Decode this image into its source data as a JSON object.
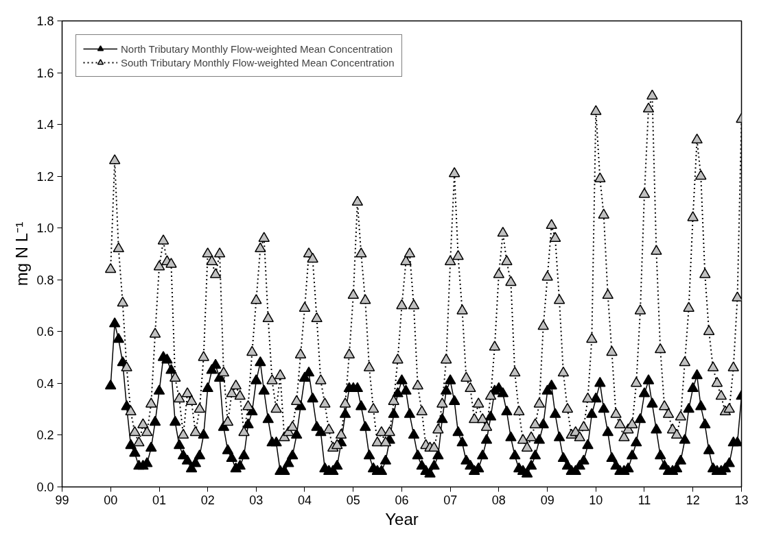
{
  "chart_data": {
    "type": "line",
    "xlabel": "Year",
    "ylabel": "mg N L⁻¹",
    "xlim": [
      "1999-01",
      "2013-01"
    ],
    "xticks": [
      {
        "value": "1999-01",
        "label": "99"
      },
      {
        "value": "2000-01",
        "label": "00"
      },
      {
        "value": "2001-01",
        "label": "01"
      },
      {
        "value": "2002-01",
        "label": "02"
      },
      {
        "value": "2003-01",
        "label": "03"
      },
      {
        "value": "2004-01",
        "label": "04"
      },
      {
        "value": "2005-01",
        "label": "05"
      },
      {
        "value": "2006-01",
        "label": "06"
      },
      {
        "value": "2007-01",
        "label": "07"
      },
      {
        "value": "2008-01",
        "label": "08"
      },
      {
        "value": "2009-01",
        "label": "09"
      },
      {
        "value": "2010-01",
        "label": "10"
      },
      {
        "value": "2011-01",
        "label": "11"
      },
      {
        "value": "2012-01",
        "label": "12"
      },
      {
        "value": "2013-01",
        "label": "13"
      }
    ],
    "ylim": [
      0,
      1.8
    ],
    "yticks": [
      {
        "value": 0,
        "label": "0.0"
      },
      0.2,
      0.4,
      0.6,
      0.8,
      {
        "value": 1,
        "label": "1.0"
      },
      1.2,
      1.4,
      1.6,
      1.8
    ],
    "grid": false,
    "legend": "top left",
    "marker": "triangle",
    "x": [
      "2000-01",
      "2000-02",
      "2000-03",
      "2000-04",
      "2000-05",
      "2000-06",
      "2000-07",
      "2000-08",
      "2000-09",
      "2000-10",
      "2000-11",
      "2000-12",
      "2001-01",
      "2001-02",
      "2001-03",
      "2001-04",
      "2001-05",
      "2001-06",
      "2001-07",
      "2001-08",
      "2001-09",
      "2001-10",
      "2001-11",
      "2001-12",
      "2002-01",
      "2002-02",
      "2002-03",
      "2002-04",
      "2002-05",
      "2002-06",
      "2002-07",
      "2002-08",
      "2002-09",
      "2002-10",
      "2002-11",
      "2002-12",
      "2003-01",
      "2003-02",
      "2003-03",
      "2003-04",
      "2003-05",
      "2003-06",
      "2003-07",
      "2003-08",
      "2003-09",
      "2003-10",
      "2003-11",
      "2003-12",
      "2004-01",
      "2004-02",
      "2004-03",
      "2004-04",
      "2004-05",
      "2004-06",
      "2004-07",
      "2004-08",
      "2004-09",
      "2004-10",
      "2004-11",
      "2004-12",
      "2005-01",
      "2005-02",
      "2005-03",
      "2005-04",
      "2005-05",
      "2005-06",
      "2005-07",
      "2005-08",
      "2005-09",
      "2005-10",
      "2005-11",
      "2005-12",
      "2006-01",
      "2006-02",
      "2006-03",
      "2006-04",
      "2006-05",
      "2006-06",
      "2006-07",
      "2006-08",
      "2006-09",
      "2006-10",
      "2006-11",
      "2006-12",
      "2007-01",
      "2007-02",
      "2007-03",
      "2007-04",
      "2007-05",
      "2007-06",
      "2007-07",
      "2007-08",
      "2007-09",
      "2007-10",
      "2007-11",
      "2007-12",
      "2008-01",
      "2008-02",
      "2008-03",
      "2008-04",
      "2008-05",
      "2008-06",
      "2008-07",
      "2008-08",
      "2008-09",
      "2008-10",
      "2008-11",
      "2008-12",
      "2009-01",
      "2009-02",
      "2009-03",
      "2009-04",
      "2009-05",
      "2009-06",
      "2009-07",
      "2009-08",
      "2009-09",
      "2009-10",
      "2009-11",
      "2009-12",
      "2010-01",
      "2010-02",
      "2010-03",
      "2010-04",
      "2010-05",
      "2010-06",
      "2010-07",
      "2010-08",
      "2010-09",
      "2010-10",
      "2010-11",
      "2010-12",
      "2011-01",
      "2011-02",
      "2011-03",
      "2011-04",
      "2011-05",
      "2011-06",
      "2011-07",
      "2011-08",
      "2011-09",
      "2011-10",
      "2011-11",
      "2011-12",
      "2012-01",
      "2012-02",
      "2012-03",
      "2012-04",
      "2012-05",
      "2012-06",
      "2012-07",
      "2012-08",
      "2012-09",
      "2012-10",
      "2012-11",
      "2012-12",
      "2013-01"
    ],
    "series": [
      {
        "name": "North Tributary Monthly Flow-weighted Mean Concentration",
        "color": "#000000",
        "line_style": "solid",
        "values": [
          0.39,
          0.63,
          0.57,
          0.48,
          0.31,
          0.16,
          0.13,
          0.08,
          0.08,
          0.09,
          0.15,
          0.25,
          0.37,
          0.5,
          0.49,
          0.45,
          0.25,
          0.16,
          0.12,
          0.1,
          0.07,
          0.09,
          0.12,
          0.2,
          0.38,
          0.45,
          0.47,
          0.42,
          0.23,
          0.14,
          0.11,
          0.07,
          0.08,
          0.12,
          0.24,
          0.29,
          0.41,
          0.48,
          0.37,
          0.26,
          0.17,
          0.17,
          0.06,
          0.06,
          0.09,
          0.12,
          0.2,
          0.31,
          0.42,
          0.44,
          0.34,
          0.23,
          0.21,
          0.07,
          0.06,
          0.06,
          0.08,
          0.17,
          0.28,
          0.38,
          0.38,
          0.38,
          0.31,
          0.23,
          0.12,
          0.07,
          0.06,
          0.06,
          0.1,
          0.18,
          0.28,
          0.36,
          0.41,
          0.37,
          0.28,
          0.2,
          0.12,
          0.08,
          0.06,
          0.05,
          0.08,
          0.12,
          0.26,
          0.37,
          0.41,
          0.33,
          0.21,
          0.17,
          0.1,
          0.08,
          0.06,
          0.07,
          0.12,
          0.18,
          0.27,
          0.37,
          0.38,
          0.36,
          0.29,
          0.19,
          0.12,
          0.07,
          0.06,
          0.05,
          0.08,
          0.12,
          0.18,
          0.24,
          0.37,
          0.39,
          0.28,
          0.19,
          0.11,
          0.08,
          0.06,
          0.06,
          0.08,
          0.1,
          0.16,
          0.28,
          0.34,
          0.4,
          0.3,
          0.21,
          0.11,
          0.08,
          0.06,
          0.06,
          0.07,
          0.12,
          0.17,
          0.26,
          0.36,
          0.41,
          0.32,
          0.22,
          0.12,
          0.08,
          0.06,
          0.06,
          0.07,
          0.1,
          0.18,
          0.3,
          0.38,
          0.43,
          0.31,
          0.24,
          0.14,
          0.07,
          0.06,
          0.06,
          0.07,
          0.09,
          0.17,
          0.17,
          0.35
        ]
      },
      {
        "name": "South Tributary Monthly Flow-weighted Mean Concentration",
        "color": "#c0c0c0",
        "line_style": "dotted",
        "values": [
          0.84,
          1.26,
          0.92,
          0.71,
          0.46,
          0.29,
          0.21,
          0.17,
          0.24,
          0.21,
          0.32,
          0.59,
          0.85,
          0.95,
          0.87,
          0.86,
          0.42,
          0.34,
          0.2,
          0.36,
          0.33,
          0.21,
          0.3,
          0.5,
          0.9,
          0.87,
          0.82,
          0.9,
          0.44,
          0.25,
          0.36,
          0.39,
          0.35,
          0.21,
          0.31,
          0.52,
          0.72,
          0.92,
          0.96,
          0.65,
          0.41,
          0.3,
          0.43,
          0.19,
          0.21,
          0.23,
          0.33,
          0.51,
          0.69,
          0.9,
          0.88,
          0.65,
          0.41,
          0.32,
          0.22,
          0.15,
          0.16,
          0.2,
          0.32,
          0.51,
          0.74,
          1.1,
          0.9,
          0.72,
          0.46,
          0.3,
          0.17,
          0.21,
          0.17,
          0.21,
          0.33,
          0.49,
          0.7,
          0.87,
          0.9,
          0.7,
          0.39,
          0.29,
          0.16,
          0.15,
          0.15,
          0.22,
          0.32,
          0.49,
          0.87,
          1.21,
          0.89,
          0.68,
          0.42,
          0.38,
          0.26,
          0.32,
          0.26,
          0.23,
          0.35,
          0.54,
          0.82,
          0.98,
          0.87,
          0.79,
          0.44,
          0.29,
          0.18,
          0.15,
          0.19,
          0.24,
          0.32,
          0.62,
          0.81,
          1.01,
          0.96,
          0.72,
          0.44,
          0.3,
          0.2,
          0.21,
          0.19,
          0.23,
          0.34,
          0.57,
          1.45,
          1.19,
          1.05,
          0.74,
          0.52,
          0.28,
          0.24,
          0.19,
          0.22,
          0.24,
          0.4,
          0.68,
          1.13,
          1.46,
          1.51,
          0.91,
          0.53,
          0.31,
          0.28,
          0.22,
          0.2,
          0.27,
          0.48,
          0.69,
          1.04,
          1.34,
          1.2,
          0.82,
          0.6,
          0.46,
          0.4,
          0.35,
          0.29,
          0.3,
          0.46,
          0.73,
          1.42
        ]
      }
    ]
  }
}
